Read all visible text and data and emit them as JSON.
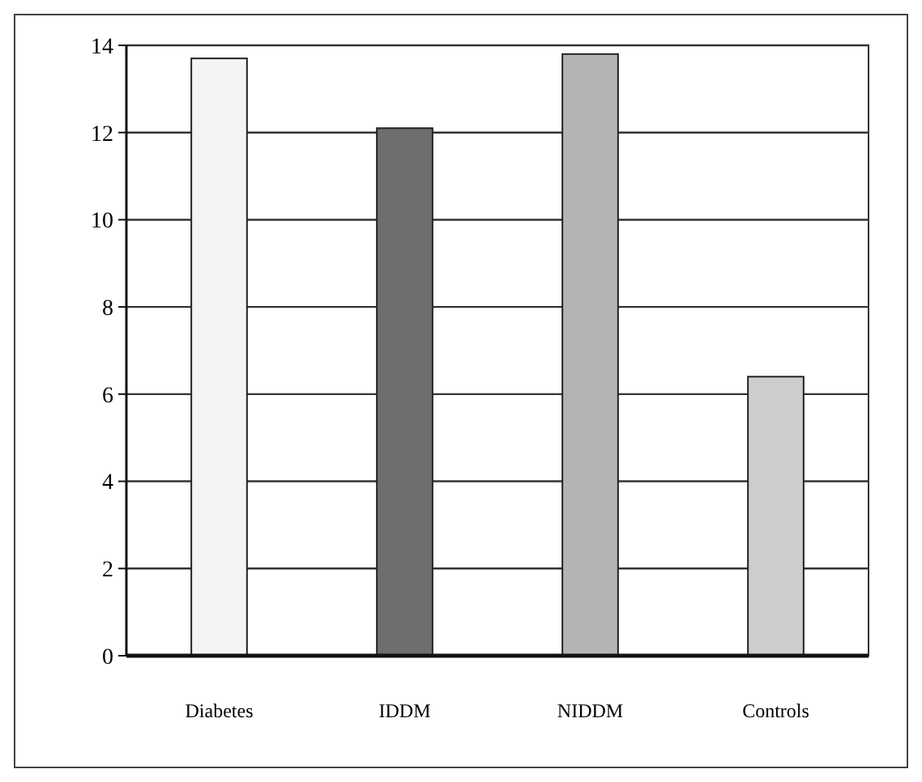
{
  "chart_data": {
    "type": "bar",
    "categories": [
      "Diabetes",
      "IDDM",
      "NIDDM",
      "Controls"
    ],
    "values": [
      13.7,
      12.1,
      13.8,
      6.4
    ],
    "colors": [
      "#f4f4f4",
      "#6e6e6e",
      "#b4b4b4",
      "#cdcdcd"
    ],
    "ylim": [
      0,
      14
    ],
    "yticks": [
      0,
      2,
      4,
      6,
      8,
      10,
      12,
      14
    ],
    "grid": "y"
  }
}
